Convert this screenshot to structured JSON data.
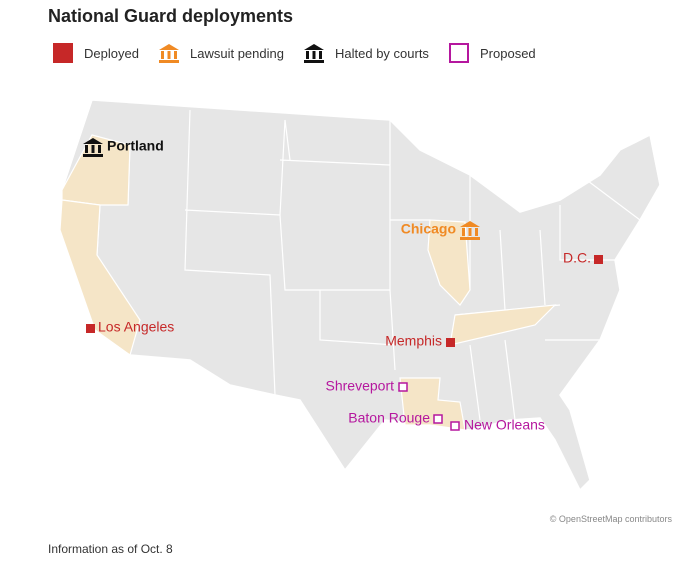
{
  "title": "National Guard deployments",
  "legend": [
    {
      "label": "Deployed"
    },
    {
      "label": "Lawsuit pending"
    },
    {
      "label": "Halted by courts"
    },
    {
      "label": "Proposed"
    }
  ],
  "places": [
    {
      "label": "Portland"
    },
    {
      "label": "Chicago"
    },
    {
      "label": "D.C."
    },
    {
      "label": "Los Angeles"
    },
    {
      "label": "Memphis"
    },
    {
      "label": "Shreveport"
    },
    {
      "label": "Baton Rouge"
    },
    {
      "label": "New Orleans"
    }
  ],
  "attribution": "© OpenStreetMap contributors",
  "note": "Information as of Oct. 8"
}
